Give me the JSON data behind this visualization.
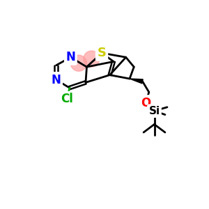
{
  "bg_color": "#ffffff",
  "atom_colors": {
    "N": "#0000ff",
    "S": "#cccc00",
    "O": "#ff0000",
    "Cl": "#00aa00",
    "C": "#000000",
    "Si": "#000000"
  },
  "ring_highlight_color": "#ff9999",
  "ring_highlight_alpha": 0.65,
  "lw": 2.0
}
